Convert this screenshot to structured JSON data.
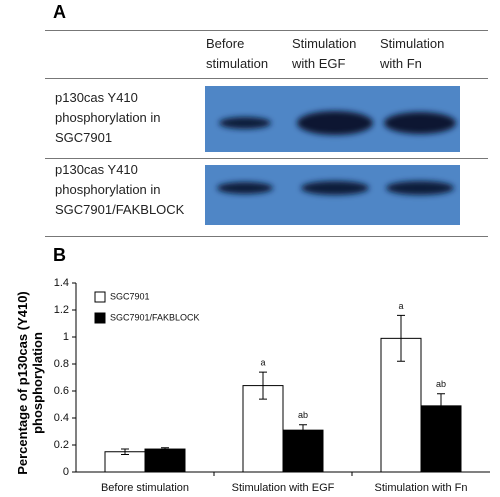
{
  "panel_a": {
    "label": "A",
    "columns": [
      "Before stimulation",
      "Stimulation with EGF",
      "Stimulation with Fn"
    ],
    "rows": [
      "p130cas Y410 phosphorylation in SGC7901",
      "p130cas Y410 phosphorylation in SGC7901/FAKBLOCK"
    ]
  },
  "chart_data": {
    "type": "bar",
    "label": "B",
    "y_label": "Percentage of p130cas (Y410) phosphorylation",
    "categories": [
      "Before stimulation",
      "Stimulation with EGF",
      "Stimulation with Fn"
    ],
    "series": [
      {
        "name": "SGC7901",
        "color": "#ffffff",
        "values": [
          0.15,
          0.64,
          0.99
        ],
        "errors": [
          0.02,
          0.1,
          0.17
        ],
        "significance": [
          null,
          "a",
          "a"
        ]
      },
      {
        "name": "SGC7901/FAKBLOCK",
        "color": "#000000",
        "values": [
          0.17,
          0.31,
          0.49
        ],
        "errors": [
          0.01,
          0.04,
          0.09
        ],
        "significance": [
          null,
          "ab",
          "ab"
        ]
      }
    ],
    "ylim": [
      0,
      1.4
    ],
    "yticks": [
      0,
      0.2,
      0.4,
      0.6,
      0.8,
      1,
      1.2,
      1.4
    ],
    "legend": "top-left"
  }
}
